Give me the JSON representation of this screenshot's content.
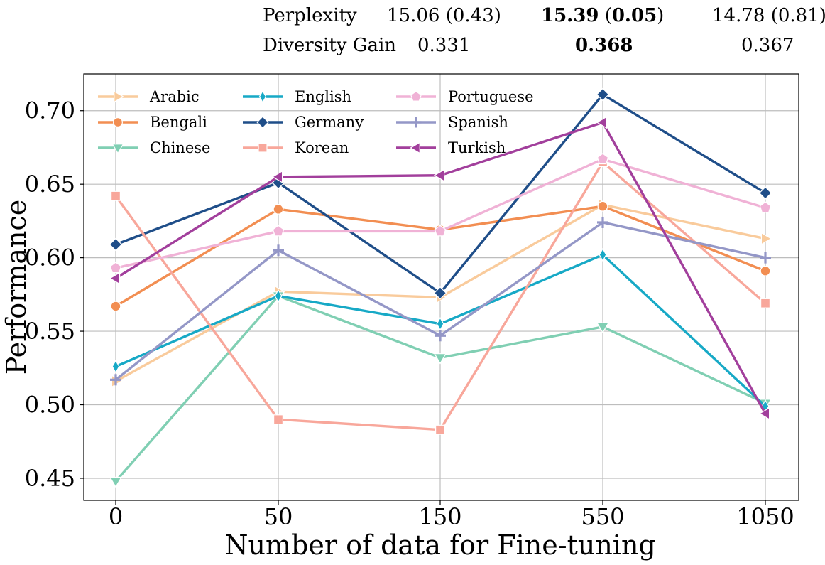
{
  "table": {
    "rows": [
      {
        "label": "Perplexity",
        "v1": "15.06 (0.43)",
        "v2_main": "15.39",
        "v2_paren_open": "(",
        "v2_paren_val": "0.05",
        "v2_paren_close": ")",
        "v3": "14.78 (0.81)"
      },
      {
        "label": "Diversity Gain",
        "v1": "0.331",
        "v2": "0.368",
        "v3": "0.367"
      }
    ]
  },
  "chart_data": {
    "type": "line",
    "title": "",
    "xlabel": "Number of data for Fine-tuning",
    "ylabel": "Performance",
    "categories": [
      "0",
      "50",
      "150",
      "550",
      "1050"
    ],
    "ylim": [
      0.435,
      0.725
    ],
    "yticks": [
      0.45,
      0.5,
      0.55,
      0.6,
      0.65,
      0.7
    ],
    "ytick_labels": [
      "0.45",
      "0.50",
      "0.55",
      "0.60",
      "0.65",
      "0.70"
    ],
    "grid": true,
    "legend_position": "top-left",
    "series": [
      {
        "name": "Arabic",
        "color": "#F9CB9C",
        "marker": "triangle-right",
        "values": [
          0.516,
          0.577,
          0.573,
          0.636,
          0.613
        ]
      },
      {
        "name": "Bengali",
        "color": "#F28E52",
        "marker": "circle",
        "values": [
          0.567,
          0.633,
          0.619,
          0.635,
          0.591
        ]
      },
      {
        "name": "Chinese",
        "color": "#80CFB3",
        "marker": "triangle-down",
        "values": [
          0.448,
          0.574,
          0.532,
          0.553,
          0.501
        ]
      },
      {
        "name": "English",
        "color": "#17A9C6",
        "marker": "diamond-thin",
        "values": [
          0.526,
          0.574,
          0.555,
          0.602,
          0.499
        ]
      },
      {
        "name": "Germany",
        "color": "#1F4E89",
        "marker": "diamond",
        "values": [
          0.609,
          0.651,
          0.576,
          0.711,
          0.644
        ]
      },
      {
        "name": "Korean",
        "color": "#F8A79B",
        "marker": "square",
        "values": [
          0.642,
          0.49,
          0.483,
          0.665,
          0.569
        ]
      },
      {
        "name": "Portuguese",
        "color": "#F0B2D6",
        "marker": "pentagon",
        "values": [
          0.593,
          0.618,
          0.618,
          0.667,
          0.634
        ]
      },
      {
        "name": "Spanish",
        "color": "#9497C7",
        "marker": "plus",
        "values": [
          0.517,
          0.605,
          0.547,
          0.624,
          0.6
        ]
      },
      {
        "name": "Turkish",
        "color": "#A23F9C",
        "marker": "triangle-left",
        "values": [
          0.586,
          0.655,
          0.656,
          0.692,
          0.494
        ]
      }
    ]
  }
}
